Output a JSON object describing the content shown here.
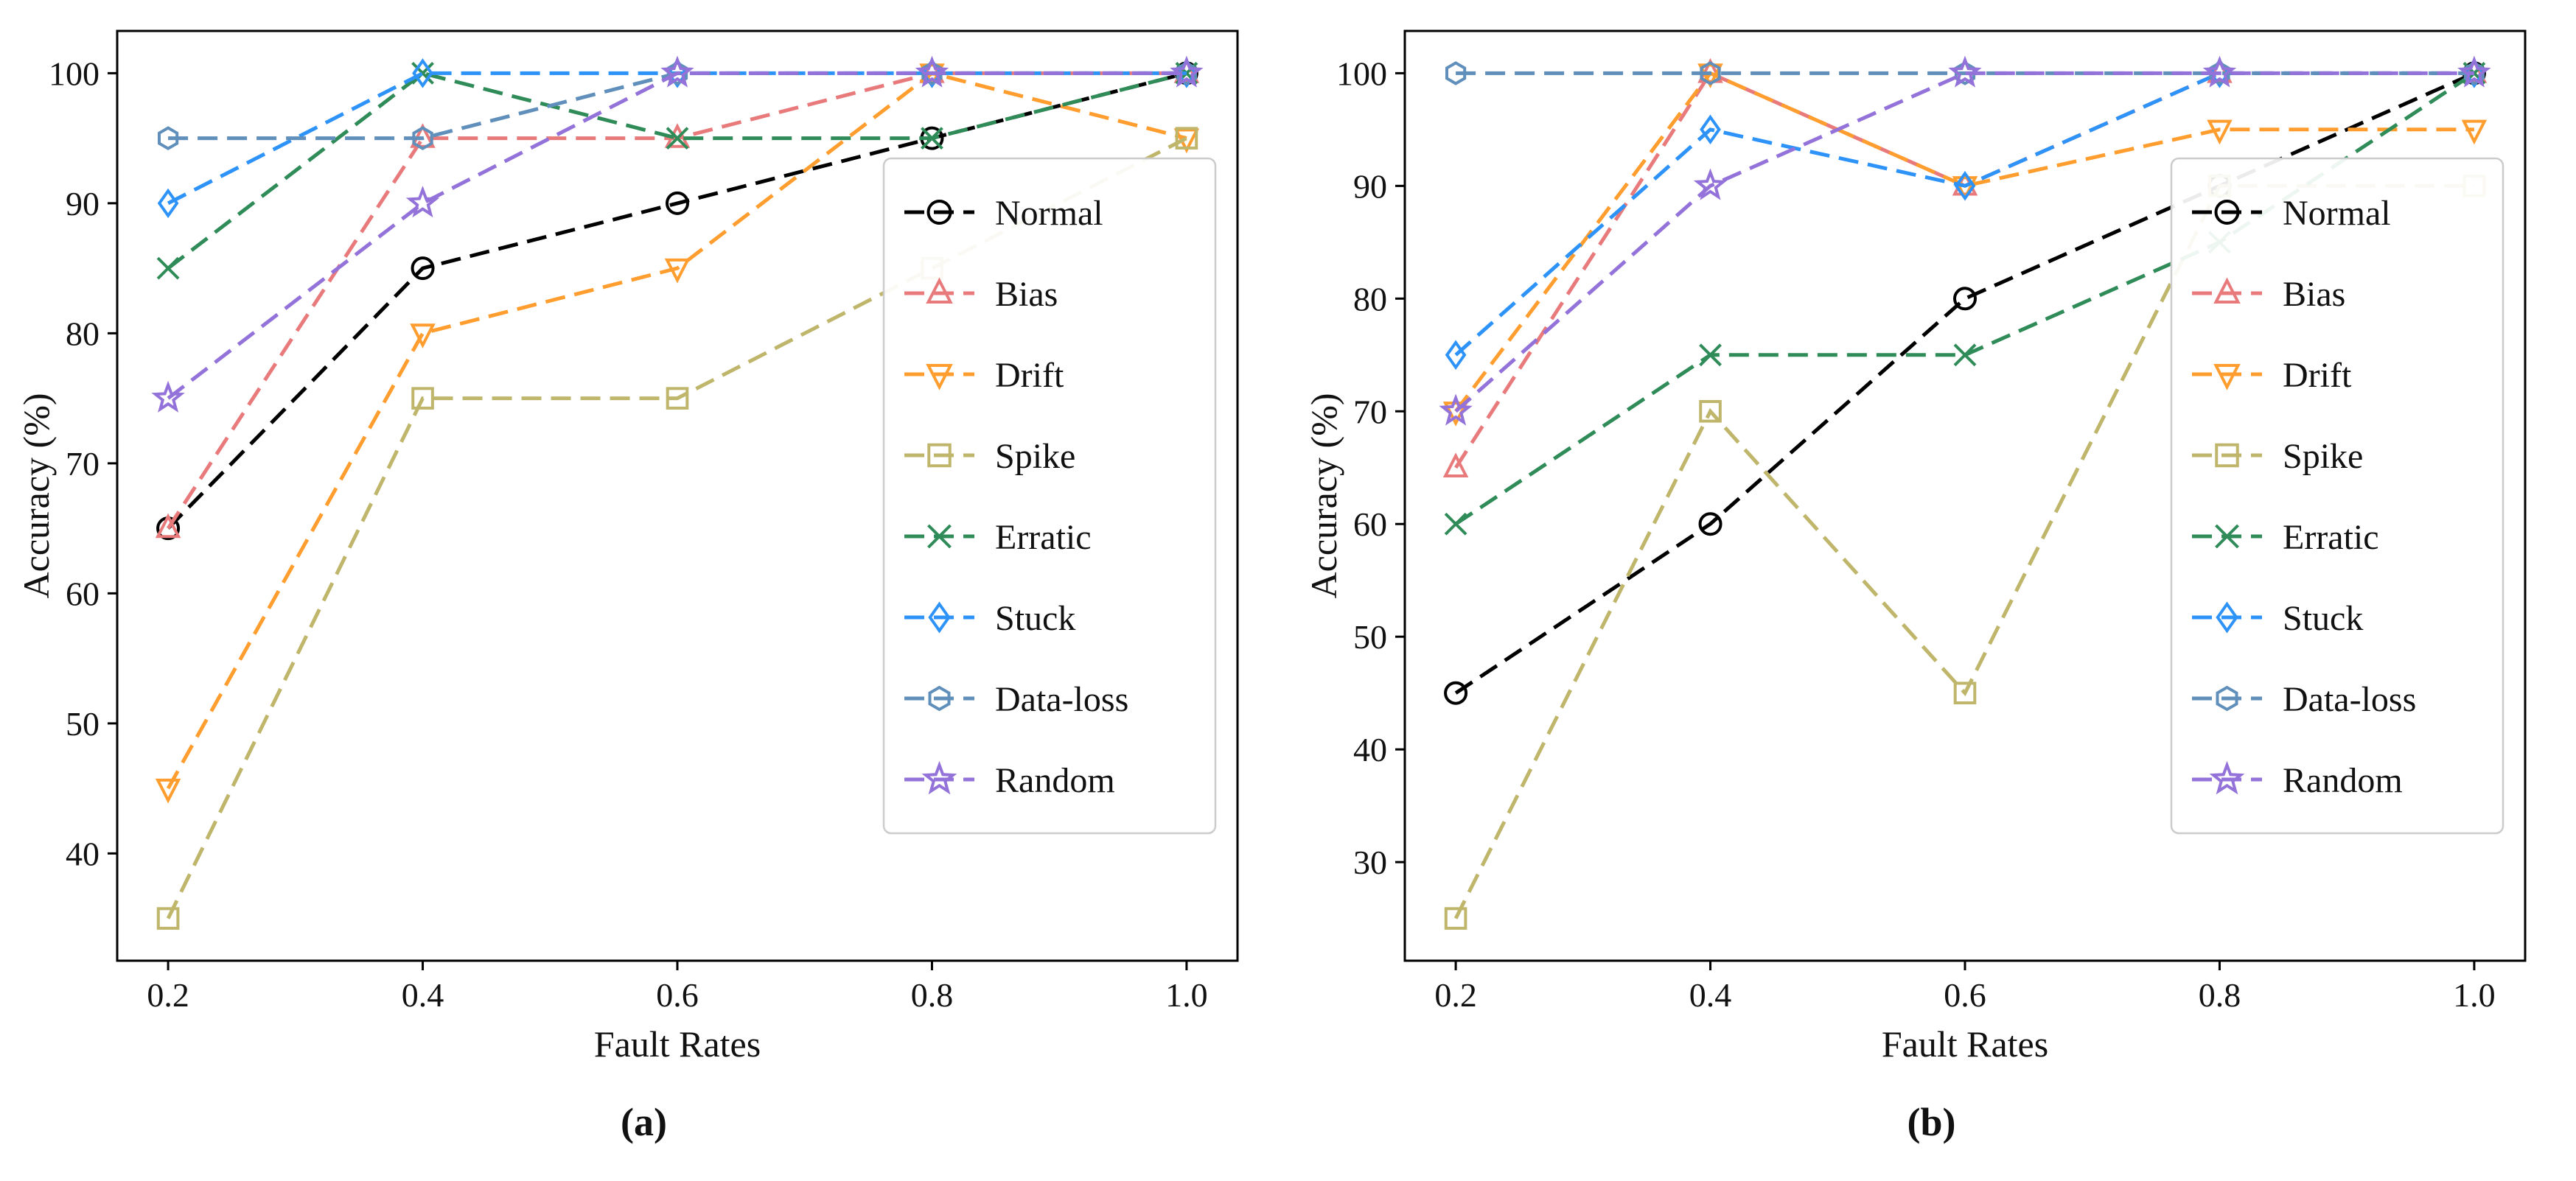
{
  "figure": {
    "background": "#ffffff"
  },
  "chart_data": [
    {
      "type": "line",
      "caption": "(a)",
      "xlabel": "Fault Rates",
      "ylabel": "Accuracy (%)",
      "x": [
        0.2,
        0.4,
        0.6,
        0.8,
        1.0
      ],
      "x_tick_labels": [
        "0.2",
        "0.4",
        "0.6",
        "0.8",
        "1.0"
      ],
      "y_ticks": [
        40,
        50,
        60,
        70,
        80,
        90,
        100
      ],
      "xlim": [
        0.16,
        1.04
      ],
      "ylim": [
        31.75,
        103.25
      ],
      "grid": false,
      "line_style": "dashed",
      "legend_position": "center-right",
      "series": [
        {
          "name": "Normal",
          "color": "#000000",
          "marker": "circle",
          "values": [
            65,
            85,
            90,
            95,
            100
          ]
        },
        {
          "name": "Bias",
          "color": "#e87a7c",
          "marker": "triangle-up",
          "values": [
            65,
            95,
            95,
            100,
            100
          ]
        },
        {
          "name": "Drift",
          "color": "#ff9d2e",
          "marker": "triangle-down",
          "values": [
            45,
            80,
            85,
            100,
            95
          ]
        },
        {
          "name": "Spike",
          "color": "#bfb66b",
          "marker": "square",
          "values": [
            35,
            75,
            75,
            85,
            95
          ]
        },
        {
          "name": "Erratic",
          "color": "#2f8b57",
          "marker": "x",
          "values": [
            85,
            100,
            95,
            95,
            100
          ]
        },
        {
          "name": "Stuck",
          "color": "#2e93f8",
          "marker": "diamond",
          "values": [
            90,
            100,
            100,
            100,
            100
          ]
        },
        {
          "name": "Data-loss",
          "color": "#5f8fba",
          "marker": "hexagon",
          "values": [
            95,
            95,
            100,
            100,
            100
          ]
        },
        {
          "name": "Random",
          "color": "#9372d9",
          "marker": "star",
          "values": [
            75,
            90,
            100,
            100,
            100
          ]
        }
      ]
    },
    {
      "type": "line",
      "caption": "(b)",
      "xlabel": "Fault Rates",
      "ylabel": "Accuracy (%)",
      "x": [
        0.2,
        0.4,
        0.6,
        0.8,
        1.0
      ],
      "x_tick_labels": [
        "0.2",
        "0.4",
        "0.6",
        "0.8",
        "1.0"
      ],
      "y_ticks": [
        30,
        40,
        50,
        60,
        70,
        80,
        90,
        100
      ],
      "xlim": [
        0.16,
        1.04
      ],
      "ylim": [
        21.25,
        103.75
      ],
      "grid": false,
      "line_style": "dashed",
      "legend_position": "center-right",
      "series": [
        {
          "name": "Normal",
          "color": "#000000",
          "marker": "circle",
          "values": [
            45,
            60,
            80,
            90,
            100
          ]
        },
        {
          "name": "Bias",
          "color": "#e87a7c",
          "marker": "triangle-up",
          "values": [
            65,
            100,
            90,
            100,
            100
          ]
        },
        {
          "name": "Drift",
          "color": "#ff9d2e",
          "marker": "triangle-down",
          "values": [
            70,
            100,
            90,
            95,
            95
          ]
        },
        {
          "name": "Spike",
          "color": "#bfb66b",
          "marker": "square",
          "values": [
            25,
            70,
            45,
            90,
            90
          ]
        },
        {
          "name": "Erratic",
          "color": "#2f8b57",
          "marker": "x",
          "values": [
            60,
            75,
            75,
            85,
            100
          ]
        },
        {
          "name": "Stuck",
          "color": "#2e93f8",
          "marker": "diamond",
          "values": [
            75,
            95,
            90,
            100,
            100
          ]
        },
        {
          "name": "Data-loss",
          "color": "#5f8fba",
          "marker": "hexagon",
          "values": [
            100,
            100,
            100,
            100,
            100
          ]
        },
        {
          "name": "Random",
          "color": "#9372d9",
          "marker": "star",
          "values": [
            70,
            90,
            100,
            100,
            100
          ]
        }
      ]
    }
  ]
}
